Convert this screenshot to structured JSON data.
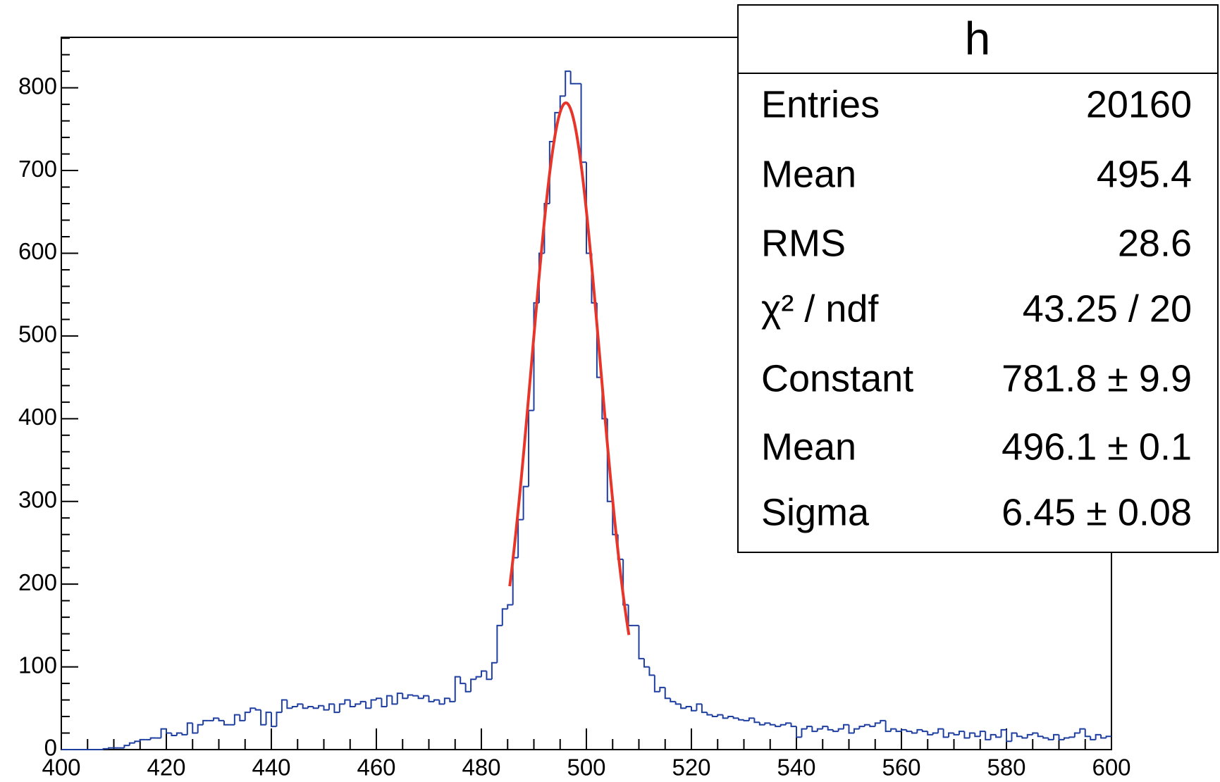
{
  "chart_data": {
    "type": "histogram",
    "color": "#1f3fa0",
    "bins": [
      400,
      401,
      402,
      403,
      404,
      405,
      406,
      407,
      408,
      409,
      410,
      411,
      412,
      413,
      414,
      415,
      416,
      417,
      418,
      419,
      420,
      421,
      422,
      423,
      424,
      425,
      426,
      427,
      428,
      429,
      430,
      431,
      432,
      433,
      434,
      435,
      436,
      437,
      438,
      439,
      440,
      441,
      442,
      443,
      444,
      445,
      446,
      447,
      448,
      449,
      450,
      451,
      452,
      453,
      454,
      455,
      456,
      457,
      458,
      459,
      460,
      461,
      462,
      463,
      464,
      465,
      466,
      467,
      468,
      469,
      470,
      471,
      472,
      473,
      474,
      475,
      476,
      477,
      478,
      479,
      480,
      481,
      482,
      483,
      484,
      485,
      486,
      487,
      488,
      489,
      490,
      491,
      492,
      493,
      494,
      495,
      496,
      497,
      498,
      499,
      500,
      501,
      502,
      503,
      504,
      505,
      506,
      507,
      508,
      509,
      510,
      511,
      512,
      513,
      514,
      515,
      516,
      517,
      518,
      519,
      520,
      521,
      522,
      523,
      524,
      525,
      526,
      527,
      528,
      529,
      530,
      531,
      532,
      533,
      534,
      535,
      536,
      537,
      538,
      539,
      540,
      541,
      542,
      543,
      544,
      545,
      546,
      547,
      548,
      549,
      550,
      551,
      552,
      553,
      554,
      555,
      556,
      557,
      558,
      559,
      560,
      561,
      562,
      563,
      564,
      565,
      566,
      567,
      568,
      569,
      570,
      571,
      572,
      573,
      574,
      575,
      576,
      577,
      578,
      579,
      580,
      581,
      582,
      583,
      584,
      585,
      586,
      587,
      588,
      589,
      590,
      591,
      592,
      593,
      594,
      595,
      596,
      597,
      598,
      599,
      600
    ],
    "values": [
      0,
      0,
      0,
      0,
      0,
      0,
      0,
      0,
      1,
      2,
      2,
      2,
      5,
      8,
      10,
      12,
      12,
      14,
      14,
      25,
      20,
      17,
      20,
      18,
      32,
      20,
      30,
      35,
      35,
      38,
      35,
      30,
      30,
      42,
      35,
      45,
      50,
      48,
      30,
      45,
      28,
      45,
      60,
      50,
      52,
      55,
      50,
      52,
      50,
      53,
      48,
      55,
      45,
      55,
      60,
      52,
      55,
      58,
      50,
      60,
      62,
      52,
      65,
      55,
      68,
      62,
      66,
      65,
      62,
      65,
      58,
      60,
      55,
      62,
      58,
      88,
      80,
      70,
      85,
      88,
      95,
      85,
      105,
      150,
      170,
      175,
      232,
      278,
      318,
      410,
      540,
      600,
      660,
      735,
      770,
      790,
      820,
      805,
      805,
      710,
      600,
      540,
      450,
      400,
      300,
      260,
      230,
      175,
      150,
      150,
      110,
      100,
      90,
      70,
      75,
      62,
      58,
      55,
      50,
      52,
      47,
      55,
      45,
      42,
      40,
      42,
      38,
      40,
      38,
      36,
      35,
      38,
      33,
      30,
      32,
      30,
      28,
      30,
      32,
      28,
      15,
      25,
      28,
      22,
      25,
      28,
      24,
      22,
      25,
      30,
      20,
      25,
      28,
      30,
      28,
      32,
      35,
      22,
      25,
      22,
      24,
      22,
      20,
      24,
      22,
      18,
      20,
      25,
      15,
      20,
      18,
      22,
      14,
      20,
      16,
      22,
      12,
      18,
      15,
      24,
      10,
      20,
      16,
      14,
      18,
      20,
      16,
      14,
      12,
      18,
      12,
      14,
      15,
      20,
      25,
      16,
      12,
      18,
      14,
      16
    ],
    "xlim": [
      400,
      600
    ],
    "xticks": [
      400,
      420,
      440,
      460,
      480,
      500,
      520,
      540,
      560,
      580,
      600
    ],
    "ylim": [
      0,
      861
    ],
    "yticks": [
      0,
      100,
      200,
      300,
      400,
      500,
      600,
      700,
      800
    ],
    "fit": {
      "type": "gaus",
      "color": "#e8352a",
      "constant": 781.8,
      "mean": 496.1,
      "sigma": 6.45,
      "xrange": [
        485.4,
        508.1
      ]
    },
    "stats": {
      "title": "h",
      "rows": [
        {
          "label": "Entries",
          "value": "20160"
        },
        {
          "label": "Mean",
          "value": "495.4"
        },
        {
          "label": "RMS",
          "value": "28.6"
        },
        {
          "label": "χ² / ndf",
          "value": "43.25 / 20"
        },
        {
          "label": "Constant",
          "value": "781.8 ± 9.9"
        },
        {
          "label": "Mean",
          "value": "496.1 ± 0.1"
        },
        {
          "label": "Sigma",
          "value": "6.45 ± 0.08"
        }
      ]
    }
  }
}
